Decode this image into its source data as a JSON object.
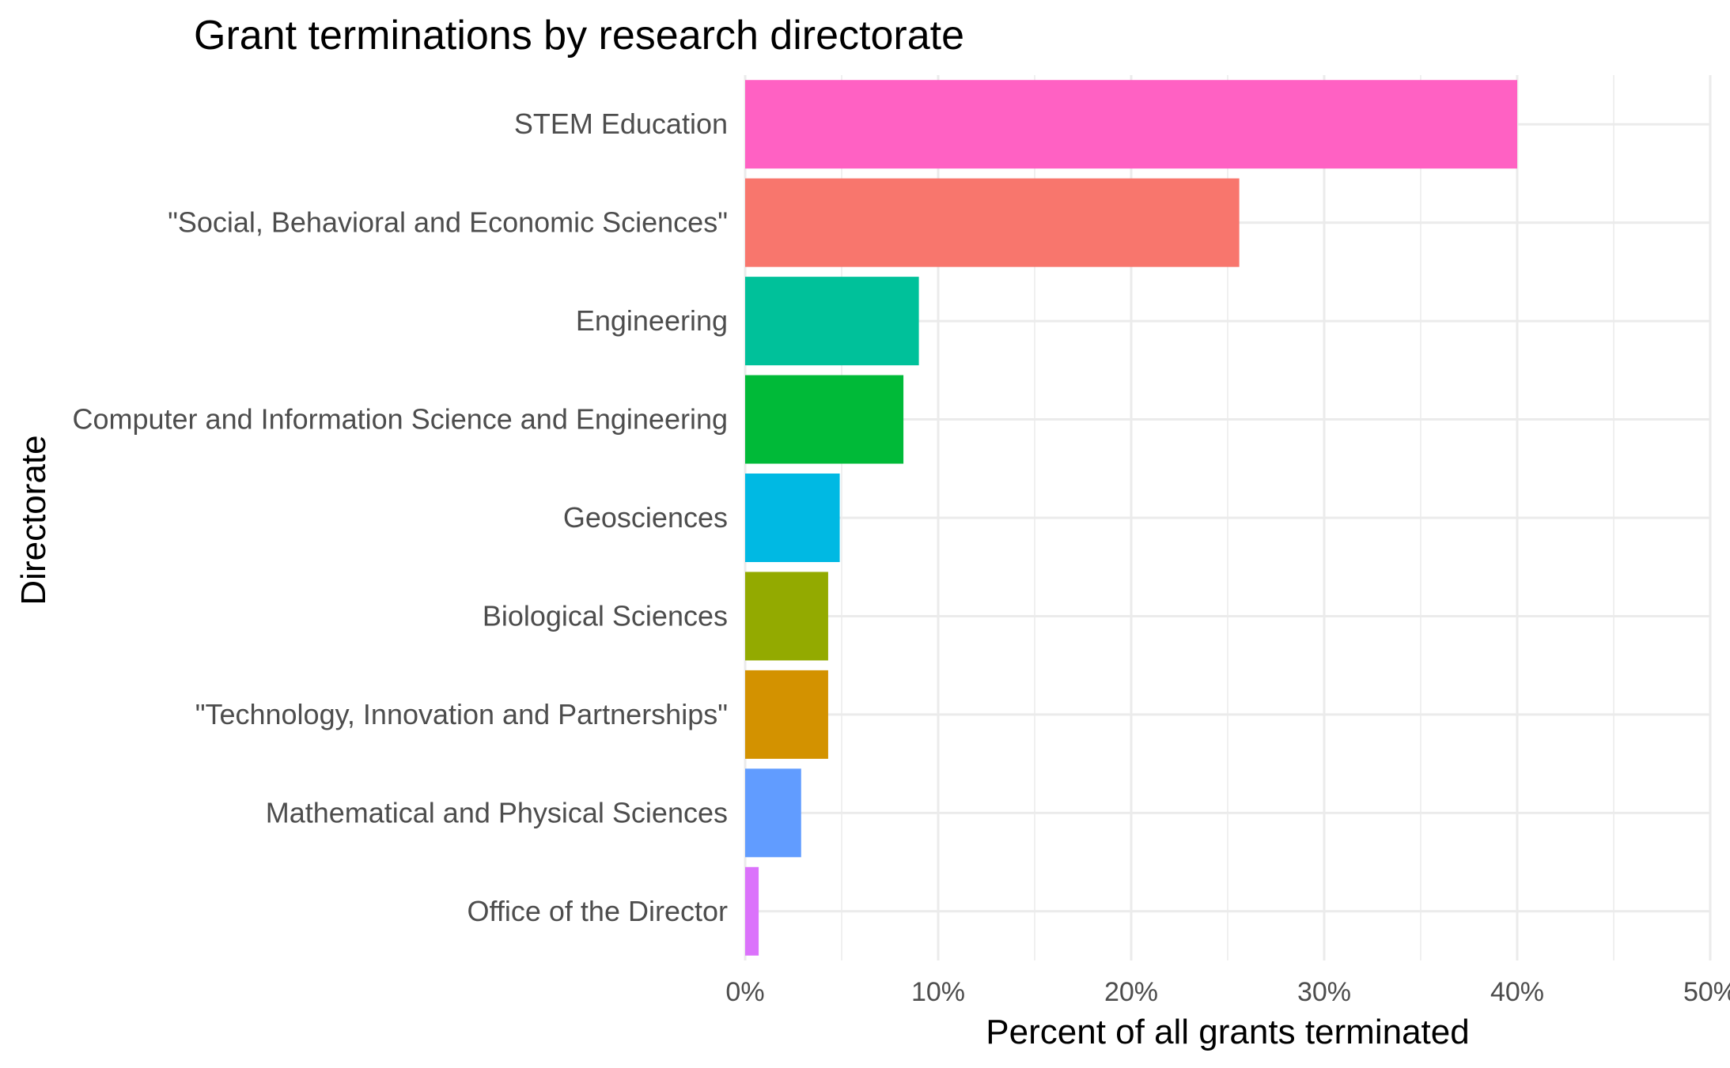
{
  "chart_data": {
    "type": "bar",
    "orientation": "horizontal",
    "title": "Grant terminations by research directorate",
    "xlabel": "Percent of all grants terminated",
    "ylabel": "Directorate",
    "xlim": [
      0,
      50
    ],
    "x_ticks": [
      0,
      10,
      20,
      30,
      40,
      50
    ],
    "x_tick_labels": [
      "0%",
      "10%",
      "20%",
      "30%",
      "40%",
      "50%"
    ],
    "grid": true,
    "legend": "none",
    "categories": [
      "STEM Education",
      "\"Social, Behavioral and Economic Sciences\"",
      "Engineering",
      "Computer and Information Science and Engineering",
      "Geosciences",
      "Biological Sciences",
      "\"Technology, Innovation and Partnerships\"",
      "Mathematical and Physical Sciences",
      "Office of the Director"
    ],
    "values": [
      40.0,
      25.6,
      9.0,
      8.2,
      4.9,
      4.3,
      4.3,
      2.9,
      0.7
    ],
    "colors": [
      "#FF61C3",
      "#F8766D",
      "#00C19A",
      "#00BA38",
      "#00B9E3",
      "#93AA00",
      "#D39200",
      "#619CFF",
      "#DB72FB"
    ]
  }
}
